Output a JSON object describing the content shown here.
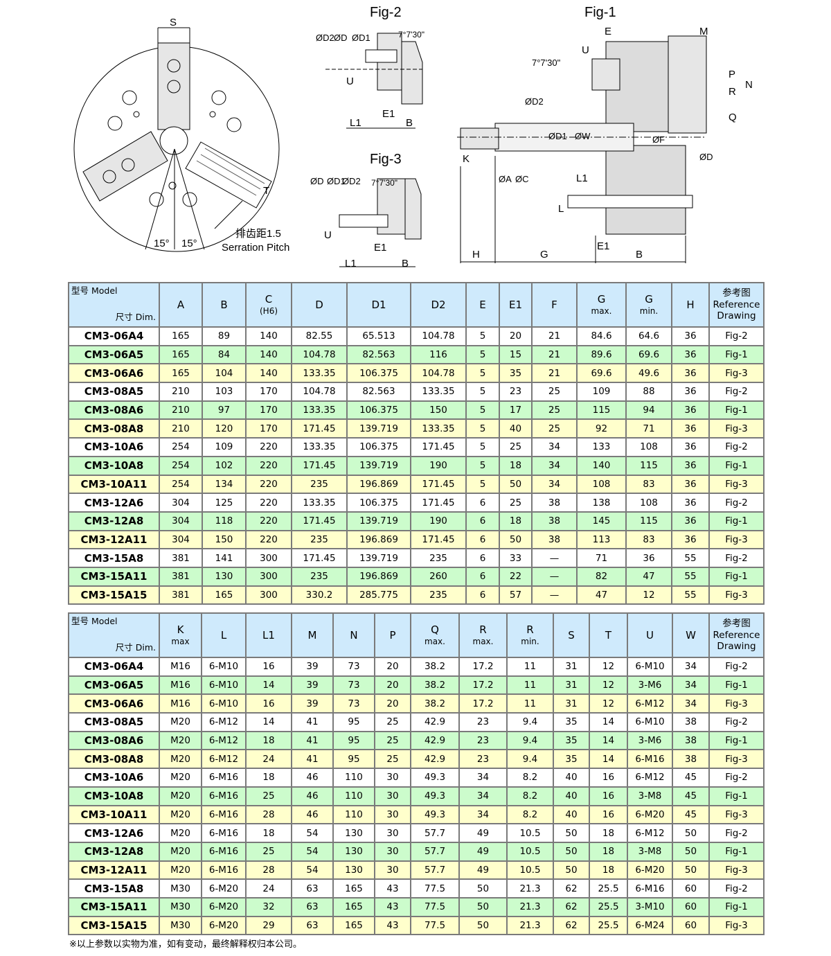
{
  "drawing": {
    "front_view": {
      "labels": [
        "S",
        "15°",
        "15°",
        "T",
        "排齿距1.5",
        "Serration Pitch"
      ]
    },
    "fig2": {
      "title": "Fig-2",
      "labels": [
        "ØD2",
        "ØD",
        "ØD1",
        "7°7'30\"",
        "U",
        "L1",
        "E1",
        "B"
      ]
    },
    "fig3": {
      "title": "Fig-3",
      "labels": [
        "ØD",
        "ØD1",
        "ØD2",
        "7°7'30\"",
        "U",
        "E1",
        "L1",
        "B"
      ]
    },
    "fig1": {
      "title": "Fig-1",
      "labels": [
        "E",
        "M",
        "U",
        "7°7'30\"",
        "ØD2",
        "ØD1",
        "ØW",
        "ØF",
        "ØD",
        "K",
        "ØA",
        "ØC",
        "L1",
        "L",
        "P",
        "R",
        "N",
        "Q",
        "H",
        "G",
        "E1",
        "B"
      ]
    }
  },
  "colors": {
    "header": "#cfeafc",
    "row_white": "#ffffff",
    "row_green": "#ccfccc",
    "row_yellow": "#ffffcc",
    "border": "#7a7a7a"
  },
  "table1": {
    "corner": {
      "dim": "尺寸 Dim.",
      "model": "型号 Model"
    },
    "headers": [
      [
        "A",
        ""
      ],
      [
        "B",
        ""
      ],
      [
        "C",
        "(H6)"
      ],
      [
        "D",
        ""
      ],
      [
        "D1",
        ""
      ],
      [
        "D2",
        ""
      ],
      [
        "E",
        ""
      ],
      [
        "E1",
        ""
      ],
      [
        "F",
        ""
      ],
      [
        "G",
        "max."
      ],
      [
        "G",
        "min."
      ],
      [
        "H",
        ""
      ],
      [
        "参考图",
        "Reference Drawing"
      ]
    ],
    "rows": [
      [
        "CM3-06A4",
        "165",
        "89",
        "140",
        "82.55",
        "65.513",
        "104.78",
        "5",
        "20",
        "21",
        "84.6",
        "64.6",
        "36",
        "Fig-2"
      ],
      [
        "CM3-06A5",
        "165",
        "84",
        "140",
        "104.78",
        "82.563",
        "116",
        "5",
        "15",
        "21",
        "89.6",
        "69.6",
        "36",
        "Fig-1"
      ],
      [
        "CM3-06A6",
        "165",
        "104",
        "140",
        "133.35",
        "106.375",
        "104.78",
        "5",
        "35",
        "21",
        "69.6",
        "49.6",
        "36",
        "Fig-3"
      ],
      [
        "CM3-08A5",
        "210",
        "103",
        "170",
        "104.78",
        "82.563",
        "133.35",
        "5",
        "23",
        "25",
        "109",
        "88",
        "36",
        "Fig-2"
      ],
      [
        "CM3-08A6",
        "210",
        "97",
        "170",
        "133.35",
        "106.375",
        "150",
        "5",
        "17",
        "25",
        "115",
        "94",
        "36",
        "Fig-1"
      ],
      [
        "CM3-08A8",
        "210",
        "120",
        "170",
        "171.45",
        "139.719",
        "133.35",
        "5",
        "40",
        "25",
        "92",
        "71",
        "36",
        "Fig-3"
      ],
      [
        "CM3-10A6",
        "254",
        "109",
        "220",
        "133.35",
        "106.375",
        "171.45",
        "5",
        "25",
        "34",
        "133",
        "108",
        "36",
        "Fig-2"
      ],
      [
        "CM3-10A8",
        "254",
        "102",
        "220",
        "171.45",
        "139.719",
        "190",
        "5",
        "18",
        "34",
        "140",
        "115",
        "36",
        "Fig-1"
      ],
      [
        "CM3-10A11",
        "254",
        "134",
        "220",
        "235",
        "196.869",
        "171.45",
        "5",
        "50",
        "34",
        "108",
        "83",
        "36",
        "Fig-3"
      ],
      [
        "CM3-12A6",
        "304",
        "125",
        "220",
        "133.35",
        "106.375",
        "171.45",
        "6",
        "25",
        "38",
        "138",
        "108",
        "36",
        "Fig-2"
      ],
      [
        "CM3-12A8",
        "304",
        "118",
        "220",
        "171.45",
        "139.719",
        "190",
        "6",
        "18",
        "38",
        "145",
        "115",
        "36",
        "Fig-1"
      ],
      [
        "CM3-12A11",
        "304",
        "150",
        "220",
        "235",
        "196.869",
        "171.45",
        "6",
        "50",
        "38",
        "113",
        "83",
        "36",
        "Fig-3"
      ],
      [
        "CM3-15A8",
        "381",
        "141",
        "300",
        "171.45",
        "139.719",
        "235",
        "6",
        "33",
        "—",
        "71",
        "36",
        "55",
        "Fig-2"
      ],
      [
        "CM3-15A11",
        "381",
        "130",
        "300",
        "235",
        "196.869",
        "260",
        "6",
        "22",
        "—",
        "82",
        "47",
        "55",
        "Fig-1"
      ],
      [
        "CM3-15A15",
        "381",
        "165",
        "300",
        "330.2",
        "285.775",
        "235",
        "6",
        "57",
        "—",
        "47",
        "12",
        "55",
        "Fig-3"
      ]
    ]
  },
  "table2": {
    "corner": {
      "dim": "尺寸 Dim.",
      "model": "型号 Model"
    },
    "headers": [
      [
        "K",
        "max"
      ],
      [
        "L",
        ""
      ],
      [
        "L1",
        ""
      ],
      [
        "M",
        ""
      ],
      [
        "N",
        ""
      ],
      [
        "P",
        ""
      ],
      [
        "Q",
        "max."
      ],
      [
        "R",
        "max."
      ],
      [
        "R",
        "min."
      ],
      [
        "S",
        ""
      ],
      [
        "T",
        ""
      ],
      [
        "U",
        ""
      ],
      [
        "W",
        ""
      ],
      [
        "参考图",
        "Reference Drawing"
      ]
    ],
    "rows": [
      [
        "CM3-06A4",
        "M16",
        "6-M10",
        "16",
        "39",
        "73",
        "20",
        "38.2",
        "17.2",
        "11",
        "31",
        "12",
        "6-M10",
        "34",
        "Fig-2"
      ],
      [
        "CM3-06A5",
        "M16",
        "6-M10",
        "14",
        "39",
        "73",
        "20",
        "38.2",
        "17.2",
        "11",
        "31",
        "12",
        "3-M6",
        "34",
        "Fig-1"
      ],
      [
        "CM3-06A6",
        "M16",
        "6-M10",
        "16",
        "39",
        "73",
        "20",
        "38.2",
        "17.2",
        "11",
        "31",
        "12",
        "6-M12",
        "34",
        "Fig-3"
      ],
      [
        "CM3-08A5",
        "M20",
        "6-M12",
        "14",
        "41",
        "95",
        "25",
        "42.9",
        "23",
        "9.4",
        "35",
        "14",
        "6-M10",
        "38",
        "Fig-2"
      ],
      [
        "CM3-08A6",
        "M20",
        "6-M12",
        "18",
        "41",
        "95",
        "25",
        "42.9",
        "23",
        "9.4",
        "35",
        "14",
        "3-M6",
        "38",
        "Fig-1"
      ],
      [
        "CM3-08A8",
        "M20",
        "6-M12",
        "24",
        "41",
        "95",
        "25",
        "42.9",
        "23",
        "9.4",
        "35",
        "14",
        "6-M16",
        "38",
        "Fig-3"
      ],
      [
        "CM3-10A6",
        "M20",
        "6-M16",
        "18",
        "46",
        "110",
        "30",
        "49.3",
        "34",
        "8.2",
        "40",
        "16",
        "6-M12",
        "45",
        "Fig-2"
      ],
      [
        "CM3-10A8",
        "M20",
        "6-M16",
        "25",
        "46",
        "110",
        "30",
        "49.3",
        "34",
        "8.2",
        "40",
        "16",
        "3-M8",
        "45",
        "Fig-1"
      ],
      [
        "CM3-10A11",
        "M20",
        "6-M16",
        "28",
        "46",
        "110",
        "30",
        "49.3",
        "34",
        "8.2",
        "40",
        "16",
        "6-M20",
        "45",
        "Fig-3"
      ],
      [
        "CM3-12A6",
        "M20",
        "6-M16",
        "18",
        "54",
        "130",
        "30",
        "57.7",
        "49",
        "10.5",
        "50",
        "18",
        "6-M12",
        "50",
        "Fig-2"
      ],
      [
        "CM3-12A8",
        "M20",
        "6-M16",
        "25",
        "54",
        "130",
        "30",
        "57.7",
        "49",
        "10.5",
        "50",
        "18",
        "3-M8",
        "50",
        "Fig-1"
      ],
      [
        "CM3-12A11",
        "M20",
        "6-M16",
        "28",
        "54",
        "130",
        "30",
        "57.7",
        "49",
        "10.5",
        "50",
        "18",
        "6-M20",
        "50",
        "Fig-3"
      ],
      [
        "CM3-15A8",
        "M30",
        "6-M20",
        "24",
        "63",
        "165",
        "43",
        "77.5",
        "50",
        "21.3",
        "62",
        "25.5",
        "6-M16",
        "60",
        "Fig-2"
      ],
      [
        "CM3-15A11",
        "M30",
        "6-M20",
        "32",
        "63",
        "165",
        "43",
        "77.5",
        "50",
        "21.3",
        "62",
        "25.5",
        "3-M10",
        "60",
        "Fig-1"
      ],
      [
        "CM3-15A15",
        "M30",
        "6-M20",
        "29",
        "63",
        "165",
        "43",
        "77.5",
        "50",
        "21.3",
        "62",
        "25.5",
        "6-M24",
        "60",
        "Fig-3"
      ]
    ]
  },
  "note": "※以上参数以实物为准，如有变动，最终解释权归本公司。"
}
